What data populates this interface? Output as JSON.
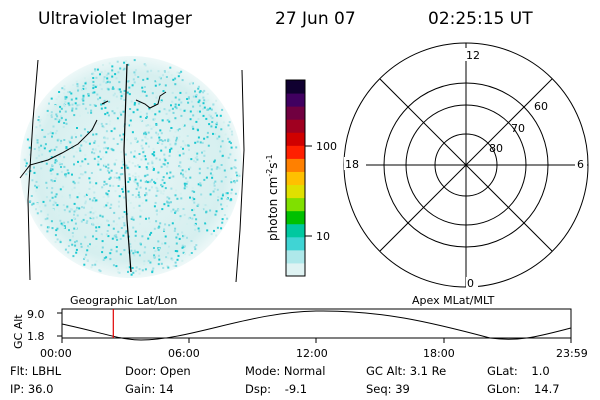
{
  "header": {
    "title": "Ultraviolet Imager",
    "date": "27 Jun 07",
    "time": "02:25:15 UT"
  },
  "colorbar": {
    "unit_label": "photon cm",
    "unit_exp1": "-2",
    "unit_mid": "s",
    "unit_exp2": "-1",
    "ticks": [
      "100",
      "10"
    ],
    "colors": [
      "#dff3f3",
      "#aee8ea",
      "#40d4d4",
      "#00c8a0",
      "#00c000",
      "#80e000",
      "#e0e000",
      "#ffc000",
      "#ff8000",
      "#ff2000",
      "#d00000",
      "#a00020",
      "#700040",
      "#400060",
      "#100030"
    ]
  },
  "polar_plot": {
    "mlt_labels": {
      "top": "12",
      "left": "18",
      "right": "6",
      "bottom": "0"
    },
    "lat_labels": [
      "60",
      "70",
      "80"
    ]
  },
  "altitude_plot": {
    "left_caption": "Geographic Lat/Lon",
    "right_caption": "Apex MLat/MLT",
    "ylabel": "GC Alt",
    "y_ticks": [
      "9.0",
      "1.8"
    ],
    "x_ticks": [
      "00:00",
      "06:00",
      "12:00",
      "18:00",
      "23:59"
    ],
    "marker_time_hours": 2.42,
    "marker_color": "#e00000"
  },
  "status": {
    "row1": [
      {
        "label": "Flt:",
        "value": "LBHL"
      },
      {
        "label": "Door:",
        "value": "Open"
      },
      {
        "label": "Mode:",
        "value": "Normal"
      },
      {
        "label": "GC Alt:",
        "value": "3.1 Re"
      },
      {
        "label": "GLat:",
        "value": "1.0"
      }
    ],
    "row2": [
      {
        "label": "IP:",
        "value": "36.0"
      },
      {
        "label": "Gain:",
        "value": "14"
      },
      {
        "label": "Dsp:",
        "value": "-9.1"
      },
      {
        "label": "Seq:",
        "value": "39"
      },
      {
        "label": "GLon:",
        "value": "14.7"
      }
    ]
  }
}
